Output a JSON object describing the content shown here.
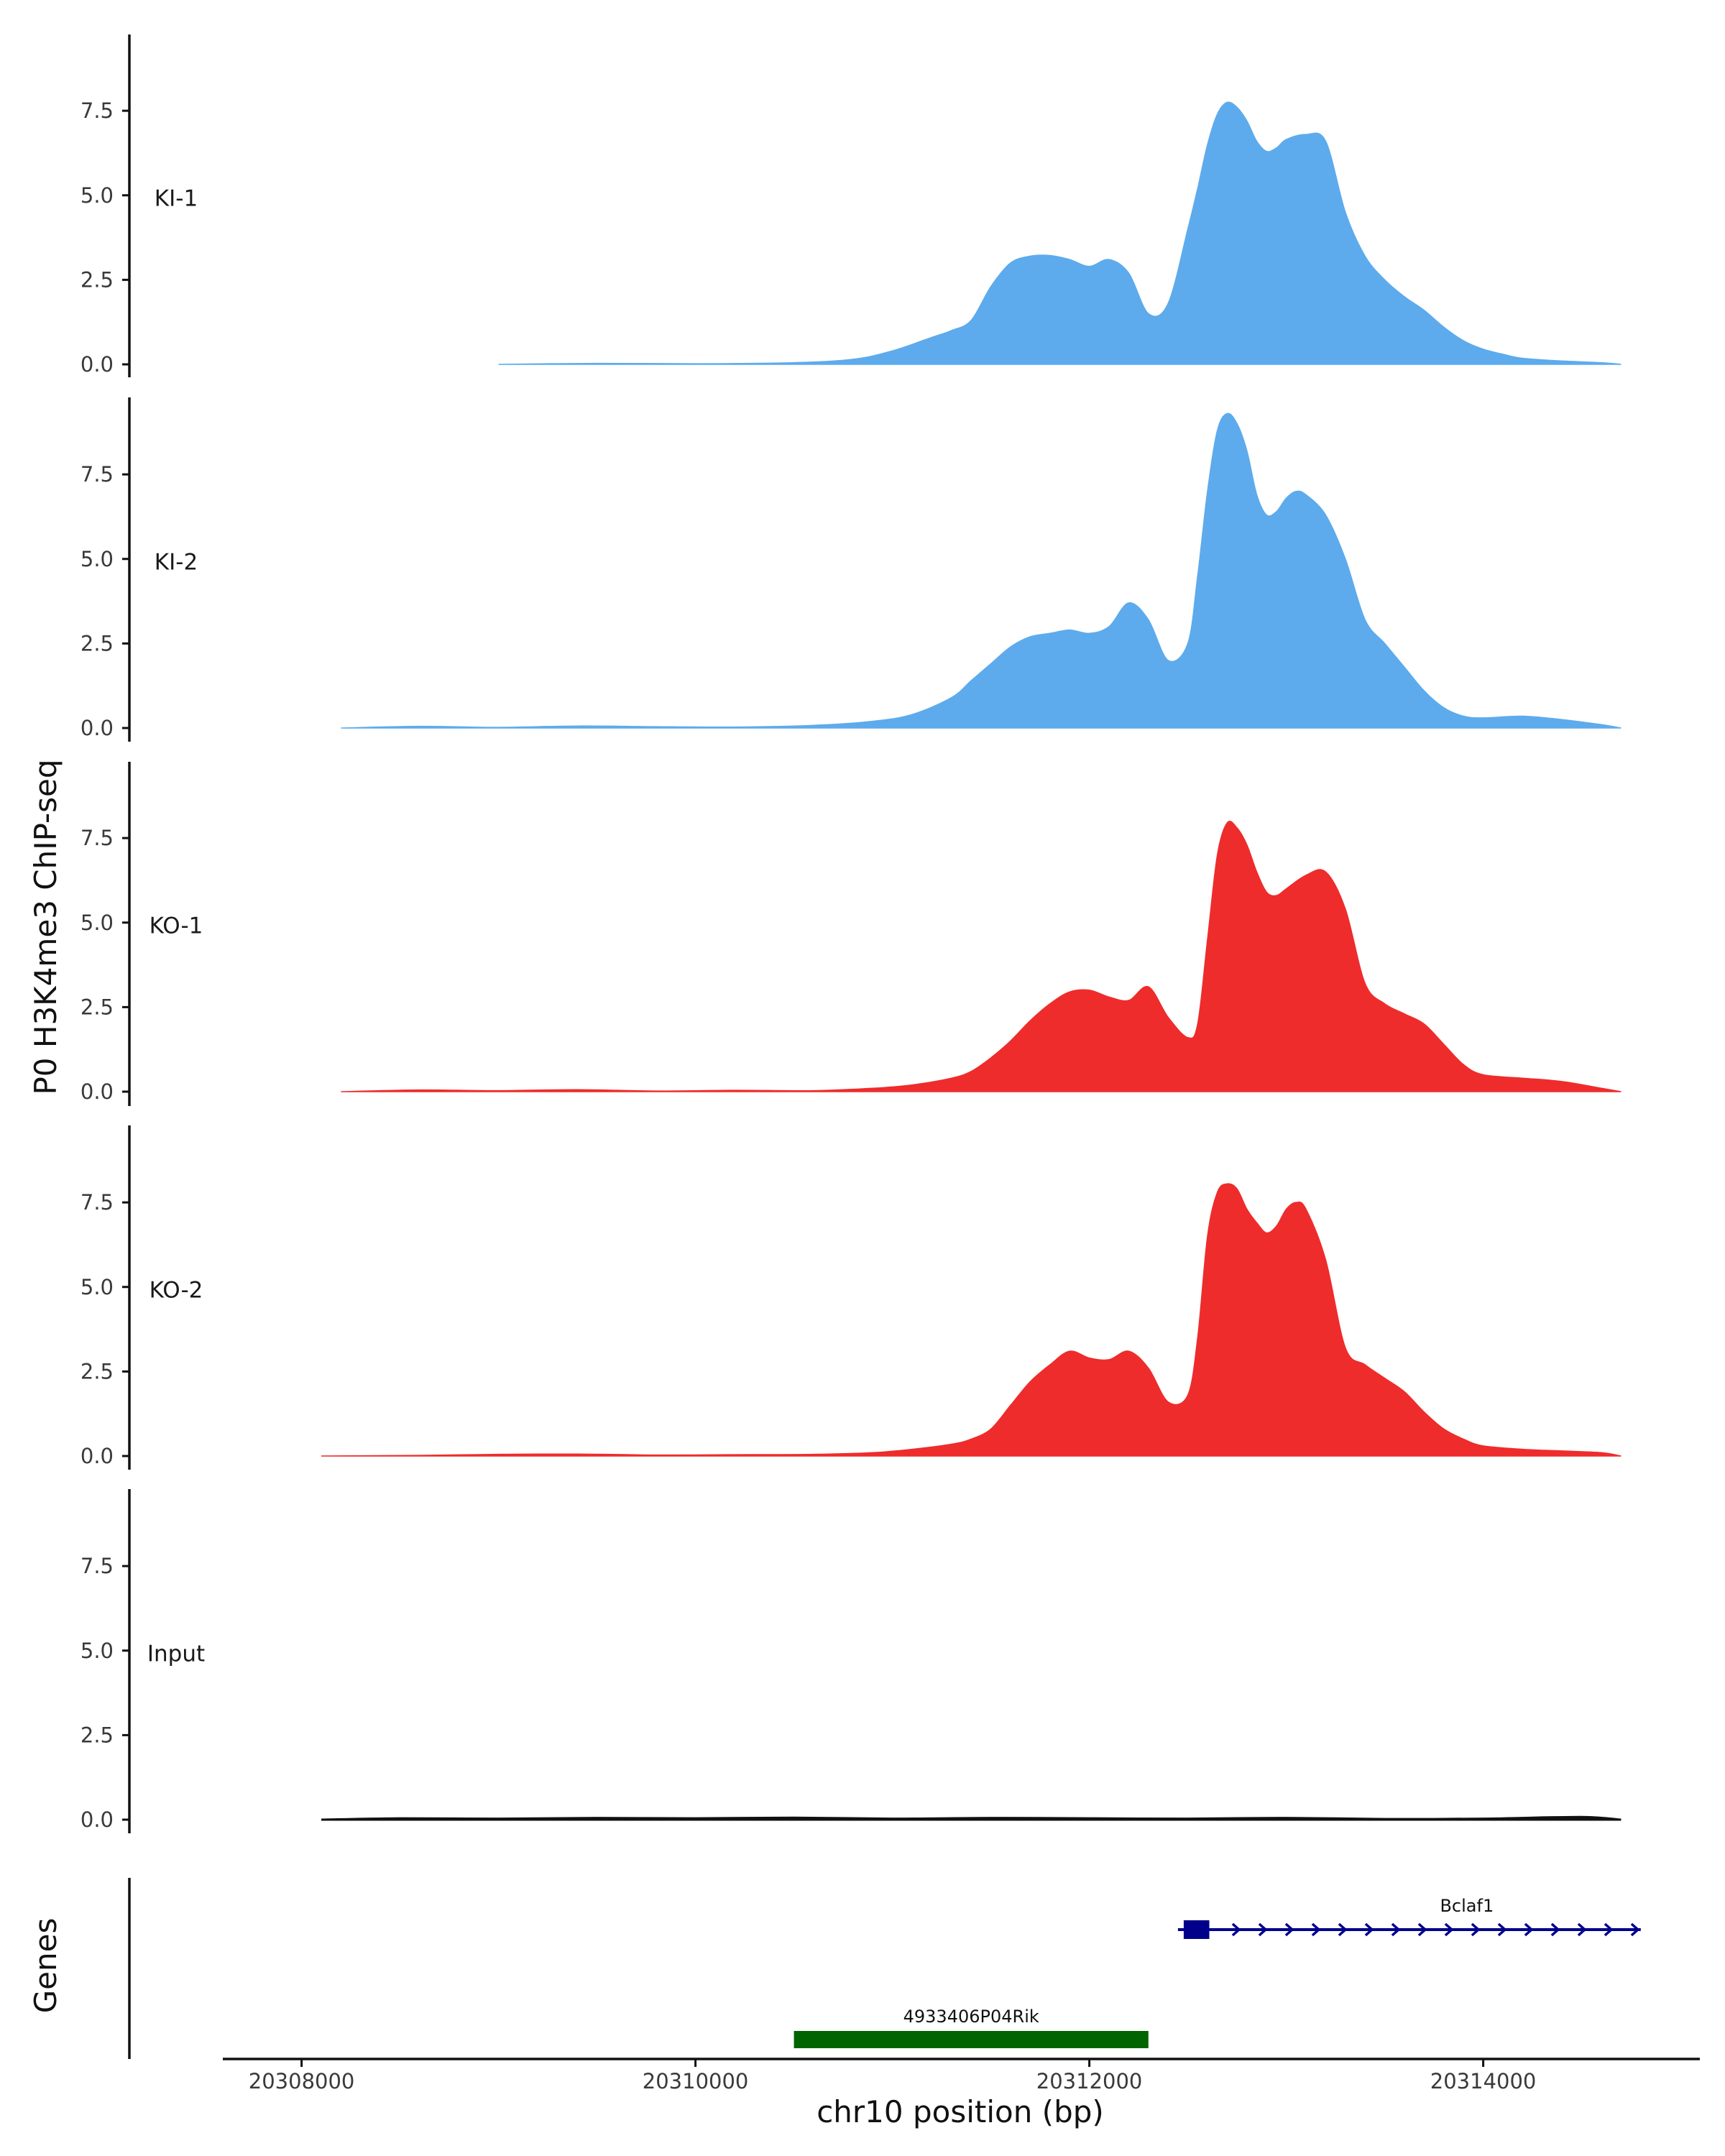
{
  "chart_data": {
    "type": "area",
    "ylabel": "P0 H3K4me3 ChIP-seq",
    "xlabel": "chr10 position (bp)",
    "xlim": [
      20307600,
      20315100
    ],
    "ylim": [
      0,
      9.6
    ],
    "yticks": [
      0,
      2.5,
      5,
      7.5
    ],
    "ytick_labels": [
      "0.0",
      "2.5",
      "5.0",
      "7.5"
    ],
    "xticks": [
      20308000,
      20310000,
      20312000,
      20314000
    ],
    "xtick_labels": [
      "20308000",
      "20310000",
      "20312000",
      "20314000"
    ],
    "colors": {
      "KI": "#5dabec",
      "KO": "#ee2c2c",
      "Input": "#111111",
      "axis": "#111111",
      "gene_plus": "#00008b",
      "gene_other": "#006400"
    },
    "tracks": [
      {
        "name": "KI-1",
        "color": "#5dabec",
        "x": [
          20309000,
          20309500,
          20310000,
          20310500,
          20310800,
          20311000,
          20311200,
          20311300,
          20311400,
          20311500,
          20311600,
          20311700,
          20311800,
          20311900,
          20312000,
          20312100,
          20312200,
          20312300,
          20312400,
          20312500,
          20312550,
          20312600,
          20312650,
          20312700,
          20312750,
          20312800,
          20312850,
          20312900,
          20312950,
          20313000,
          20313100,
          20313200,
          20313300,
          20313400,
          20313500,
          20313600,
          20313700,
          20313800,
          20313900,
          20314000,
          20314100,
          20314200,
          20314400,
          20314600,
          20314700
        ],
        "y": [
          0.0,
          0.03,
          0.02,
          0.05,
          0.15,
          0.4,
          0.8,
          1.0,
          1.3,
          2.3,
          3.0,
          3.2,
          3.22,
          3.1,
          2.9,
          3.1,
          2.7,
          1.5,
          1.8,
          4.0,
          5.2,
          6.5,
          7.4,
          7.75,
          7.6,
          7.2,
          6.6,
          6.3,
          6.4,
          6.65,
          6.8,
          6.6,
          4.5,
          3.2,
          2.5,
          2.0,
          1.6,
          1.1,
          0.7,
          0.45,
          0.3,
          0.18,
          0.1,
          0.05,
          0.0
        ]
      },
      {
        "name": "KI-2",
        "color": "#5dabec",
        "x": [
          20308200,
          20308600,
          20309000,
          20309400,
          20309800,
          20310200,
          20310600,
          20310900,
          20311100,
          20311300,
          20311400,
          20311500,
          20311600,
          20311700,
          20311800,
          20311900,
          20312000,
          20312100,
          20312200,
          20312300,
          20312400,
          20312500,
          20312550,
          20312600,
          20312650,
          20312700,
          20312750,
          20312800,
          20312850,
          20312900,
          20312950,
          20313000,
          20313050,
          20313100,
          20313200,
          20313300,
          20313400,
          20313500,
          20313600,
          20313700,
          20313800,
          20313900,
          20314000,
          20314200,
          20314400,
          20314600,
          20314700
        ],
        "y": [
          0.0,
          0.05,
          0.02,
          0.06,
          0.04,
          0.03,
          0.08,
          0.2,
          0.4,
          0.9,
          1.4,
          1.9,
          2.4,
          2.7,
          2.8,
          2.9,
          2.8,
          3.0,
          3.7,
          3.2,
          2.0,
          2.5,
          4.5,
          7.0,
          8.8,
          9.3,
          9.0,
          8.2,
          6.9,
          6.3,
          6.4,
          6.8,
          7.0,
          6.9,
          6.3,
          5.0,
          3.2,
          2.5,
          1.8,
          1.1,
          0.6,
          0.35,
          0.3,
          0.35,
          0.25,
          0.1,
          0.0
        ]
      },
      {
        "name": "KO-1",
        "color": "#ee2c2c",
        "x": [
          20308200,
          20308600,
          20309000,
          20309400,
          20309800,
          20310200,
          20310600,
          20310900,
          20311100,
          20311300,
          20311400,
          20311500,
          20311600,
          20311700,
          20311800,
          20311900,
          20312000,
          20312100,
          20312200,
          20312300,
          20312400,
          20312500,
          20312550,
          20312600,
          20312650,
          20312700,
          20312750,
          20312800,
          20312850,
          20312900,
          20312950,
          20313000,
          20313100,
          20313200,
          20313300,
          20313400,
          20313500,
          20313600,
          20313700,
          20313800,
          20313900,
          20314000,
          20314200,
          20314400,
          20314600,
          20314700
        ],
        "y": [
          0.0,
          0.05,
          0.03,
          0.06,
          0.02,
          0.04,
          0.03,
          0.1,
          0.2,
          0.4,
          0.6,
          1.0,
          1.5,
          2.1,
          2.6,
          2.95,
          3.0,
          2.8,
          2.7,
          3.1,
          2.2,
          1.6,
          2.0,
          4.5,
          7.0,
          7.95,
          7.8,
          7.3,
          6.5,
          5.9,
          5.8,
          6.0,
          6.4,
          6.5,
          5.4,
          3.2,
          2.6,
          2.3,
          2.0,
          1.4,
          0.8,
          0.5,
          0.4,
          0.3,
          0.1,
          0.0
        ]
      },
      {
        "name": "KO-2",
        "color": "#ee2c2c",
        "x": [
          20308100,
          20308600,
          20309000,
          20309400,
          20309800,
          20310200,
          20310600,
          20310900,
          20311100,
          20311300,
          20311400,
          20311500,
          20311600,
          20311700,
          20311800,
          20311900,
          20312000,
          20312100,
          20312200,
          20312300,
          20312400,
          20312500,
          20312550,
          20312600,
          20312650,
          20312700,
          20312750,
          20312800,
          20312850,
          20312900,
          20312950,
          20313000,
          20313050,
          20313100,
          20313200,
          20313300,
          20313400,
          20313500,
          20313600,
          20313700,
          20313800,
          20313900,
          20314000,
          20314200,
          20314400,
          20314600,
          20314700
        ],
        "y": [
          0.0,
          0.02,
          0.05,
          0.06,
          0.03,
          0.04,
          0.05,
          0.1,
          0.2,
          0.35,
          0.5,
          0.8,
          1.5,
          2.2,
          2.7,
          3.1,
          2.9,
          2.85,
          3.1,
          2.6,
          1.6,
          1.8,
          3.5,
          6.5,
          7.8,
          8.05,
          7.9,
          7.3,
          6.9,
          6.6,
          6.8,
          7.3,
          7.5,
          7.3,
          5.8,
          3.2,
          2.7,
          2.3,
          1.9,
          1.3,
          0.8,
          0.5,
          0.3,
          0.2,
          0.15,
          0.1,
          0.0
        ]
      },
      {
        "name": "Input",
        "color": "#111111",
        "x": [
          20308100,
          20308500,
          20309000,
          20309500,
          20310000,
          20310500,
          20311000,
          20311500,
          20312000,
          20312500,
          20313000,
          20313500,
          20314000,
          20314500,
          20314700
        ],
        "y": [
          0.0,
          0.04,
          0.03,
          0.05,
          0.04,
          0.06,
          0.03,
          0.05,
          0.04,
          0.03,
          0.05,
          0.02,
          0.03,
          0.08,
          0.0
        ]
      }
    ],
    "genes_track": {
      "title": "Genes",
      "genes": [
        {
          "name": "Bclaf1",
          "start": 20312450,
          "end": 20314800,
          "strand": "+",
          "exon_start": 20312450,
          "exon_end": 20312580,
          "color": "#00008b",
          "row": 1
        },
        {
          "name": "4933406P04Rik",
          "start": 20310500,
          "end": 20312300,
          "strand": "",
          "color": "#006400",
          "row": 2
        }
      ]
    }
  }
}
